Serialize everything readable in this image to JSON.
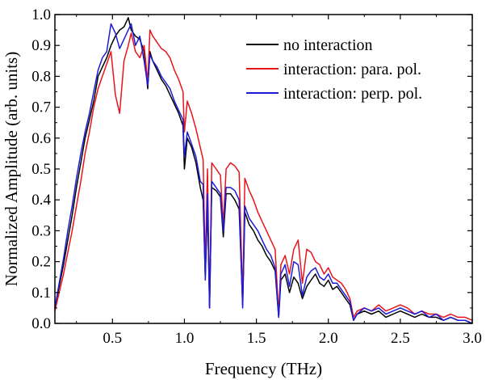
{
  "chart_data": {
    "type": "line",
    "title": "",
    "xlabel": "Frequency (THz)",
    "ylabel": "Normalized Amplitude (arb. units)",
    "xlim": [
      0.1,
      3.0
    ],
    "ylim": [
      0.0,
      1.0
    ],
    "xticks": [
      0.5,
      1.0,
      1.5,
      2.0,
      2.5,
      3.0
    ],
    "xtick_labels": [
      "0.5",
      "1.0",
      "1.5",
      "2.0",
      "2.5",
      "3.0"
    ],
    "yticks": [
      0.0,
      0.1,
      0.2,
      0.3,
      0.4,
      0.5,
      0.6,
      0.7,
      0.8,
      0.9,
      1.0
    ],
    "ytick_labels": [
      "0.0",
      "0.1",
      "0.2",
      "0.3",
      "0.4",
      "0.5",
      "0.6",
      "0.7",
      "0.8",
      "0.9",
      "1.0"
    ],
    "grid": false,
    "legend_position": "top-right",
    "series": [
      {
        "name": "no interaction",
        "color": "#000000",
        "x": [
          0.1,
          0.13,
          0.16,
          0.19,
          0.22,
          0.25,
          0.28,
          0.31,
          0.34,
          0.37,
          0.4,
          0.43,
          0.46,
          0.49,
          0.52,
          0.55,
          0.58,
          0.61,
          0.63,
          0.66,
          0.69,
          0.72,
          0.745,
          0.76,
          0.78,
          0.81,
          0.84,
          0.87,
          0.9,
          0.93,
          0.96,
          0.99,
          1.0,
          1.02,
          1.05,
          1.08,
          1.11,
          1.13,
          1.145,
          1.16,
          1.175,
          1.19,
          1.22,
          1.25,
          1.27,
          1.29,
          1.32,
          1.35,
          1.38,
          1.405,
          1.42,
          1.45,
          1.48,
          1.51,
          1.54,
          1.57,
          1.6,
          1.63,
          1.655,
          1.67,
          1.7,
          1.73,
          1.76,
          1.79,
          1.82,
          1.85,
          1.88,
          1.91,
          1.94,
          1.97,
          2.0,
          2.03,
          2.06,
          2.09,
          2.12,
          2.15,
          2.175,
          2.2,
          2.25,
          2.3,
          2.35,
          2.4,
          2.45,
          2.5,
          2.55,
          2.6,
          2.65,
          2.7,
          2.75,
          2.8,
          2.85,
          2.9,
          2.95,
          3.0
        ],
        "y": [
          0.05,
          0.12,
          0.19,
          0.27,
          0.35,
          0.44,
          0.52,
          0.6,
          0.66,
          0.72,
          0.8,
          0.83,
          0.86,
          0.9,
          0.93,
          0.95,
          0.96,
          0.99,
          0.95,
          0.93,
          0.92,
          0.88,
          0.76,
          0.88,
          0.85,
          0.82,
          0.79,
          0.77,
          0.74,
          0.71,
          0.68,
          0.64,
          0.5,
          0.6,
          0.57,
          0.52,
          0.44,
          0.4,
          0.15,
          0.38,
          0.05,
          0.44,
          0.43,
          0.41,
          0.28,
          0.42,
          0.42,
          0.4,
          0.37,
          0.06,
          0.36,
          0.32,
          0.3,
          0.27,
          0.25,
          0.22,
          0.2,
          0.17,
          0.02,
          0.14,
          0.16,
          0.1,
          0.15,
          0.13,
          0.08,
          0.12,
          0.14,
          0.16,
          0.13,
          0.12,
          0.14,
          0.11,
          0.12,
          0.1,
          0.08,
          0.06,
          0.01,
          0.03,
          0.04,
          0.03,
          0.04,
          0.02,
          0.03,
          0.04,
          0.03,
          0.02,
          0.03,
          0.02,
          0.02,
          0.01,
          0.02,
          0.01,
          0.01,
          0.0
        ]
      },
      {
        "name": "interaction: para. pol.",
        "color": "#e8141c",
        "x": [
          0.1,
          0.13,
          0.16,
          0.19,
          0.22,
          0.25,
          0.28,
          0.31,
          0.34,
          0.37,
          0.4,
          0.43,
          0.46,
          0.49,
          0.52,
          0.55,
          0.58,
          0.61,
          0.63,
          0.66,
          0.69,
          0.72,
          0.745,
          0.76,
          0.78,
          0.81,
          0.84,
          0.87,
          0.9,
          0.93,
          0.96,
          0.99,
          1.0,
          1.02,
          1.05,
          1.08,
          1.11,
          1.13,
          1.145,
          1.16,
          1.175,
          1.19,
          1.22,
          1.25,
          1.27,
          1.29,
          1.32,
          1.35,
          1.38,
          1.405,
          1.42,
          1.45,
          1.48,
          1.51,
          1.54,
          1.57,
          1.6,
          1.63,
          1.655,
          1.67,
          1.7,
          1.73,
          1.76,
          1.79,
          1.82,
          1.85,
          1.88,
          1.91,
          1.94,
          1.97,
          2.0,
          2.03,
          2.06,
          2.09,
          2.12,
          2.15,
          2.175,
          2.2,
          2.25,
          2.3,
          2.35,
          2.4,
          2.45,
          2.5,
          2.55,
          2.6,
          2.65,
          2.7,
          2.75,
          2.8,
          2.85,
          2.9,
          2.95,
          3.0
        ],
        "y": [
          0.04,
          0.1,
          0.16,
          0.23,
          0.3,
          0.38,
          0.46,
          0.55,
          0.62,
          0.7,
          0.76,
          0.8,
          0.84,
          0.88,
          0.74,
          0.68,
          0.85,
          0.9,
          0.94,
          0.88,
          0.86,
          0.9,
          0.78,
          0.95,
          0.93,
          0.91,
          0.89,
          0.88,
          0.86,
          0.82,
          0.79,
          0.75,
          0.62,
          0.72,
          0.68,
          0.63,
          0.57,
          0.53,
          0.18,
          0.5,
          0.06,
          0.52,
          0.5,
          0.48,
          0.32,
          0.5,
          0.52,
          0.51,
          0.49,
          0.08,
          0.47,
          0.43,
          0.4,
          0.36,
          0.33,
          0.3,
          0.27,
          0.24,
          0.03,
          0.19,
          0.22,
          0.16,
          0.24,
          0.27,
          0.13,
          0.24,
          0.23,
          0.2,
          0.19,
          0.16,
          0.18,
          0.15,
          0.14,
          0.13,
          0.11,
          0.08,
          0.02,
          0.04,
          0.05,
          0.04,
          0.06,
          0.04,
          0.05,
          0.06,
          0.05,
          0.03,
          0.04,
          0.03,
          0.03,
          0.02,
          0.03,
          0.02,
          0.02,
          0.01
        ]
      },
      {
        "name": "interaction: perp. pol.",
        "color": "#1c1cd8",
        "x": [
          0.1,
          0.13,
          0.16,
          0.19,
          0.22,
          0.25,
          0.28,
          0.31,
          0.34,
          0.37,
          0.4,
          0.43,
          0.46,
          0.49,
          0.52,
          0.55,
          0.58,
          0.61,
          0.63,
          0.66,
          0.69,
          0.72,
          0.745,
          0.76,
          0.78,
          0.81,
          0.84,
          0.87,
          0.9,
          0.93,
          0.96,
          0.99,
          1.0,
          1.02,
          1.05,
          1.08,
          1.11,
          1.13,
          1.145,
          1.16,
          1.175,
          1.19,
          1.22,
          1.25,
          1.27,
          1.29,
          1.32,
          1.35,
          1.38,
          1.405,
          1.42,
          1.45,
          1.48,
          1.51,
          1.54,
          1.57,
          1.6,
          1.63,
          1.655,
          1.67,
          1.7,
          1.73,
          1.76,
          1.79,
          1.82,
          1.85,
          1.88,
          1.91,
          1.94,
          1.97,
          2.0,
          2.03,
          2.06,
          2.09,
          2.12,
          2.15,
          2.175,
          2.2,
          2.25,
          2.3,
          2.35,
          2.4,
          2.45,
          2.5,
          2.55,
          2.6,
          2.65,
          2.7,
          2.75,
          2.8,
          2.85,
          2.9,
          2.95,
          3.0
        ],
        "y": [
          0.05,
          0.13,
          0.21,
          0.3,
          0.38,
          0.47,
          0.55,
          0.62,
          0.68,
          0.75,
          0.82,
          0.86,
          0.88,
          0.97,
          0.94,
          0.89,
          0.92,
          0.95,
          0.97,
          0.9,
          0.93,
          0.85,
          0.77,
          0.87,
          0.85,
          0.83,
          0.8,
          0.78,
          0.76,
          0.72,
          0.69,
          0.66,
          0.54,
          0.62,
          0.58,
          0.54,
          0.46,
          0.45,
          0.14,
          0.42,
          0.05,
          0.46,
          0.44,
          0.42,
          0.3,
          0.44,
          0.44,
          0.43,
          0.4,
          0.05,
          0.38,
          0.34,
          0.32,
          0.3,
          0.27,
          0.24,
          0.22,
          0.18,
          0.02,
          0.16,
          0.19,
          0.12,
          0.2,
          0.19,
          0.09,
          0.15,
          0.17,
          0.18,
          0.15,
          0.14,
          0.16,
          0.13,
          0.13,
          0.11,
          0.09,
          0.07,
          0.01,
          0.03,
          0.05,
          0.04,
          0.05,
          0.03,
          0.04,
          0.05,
          0.04,
          0.03,
          0.04,
          0.02,
          0.03,
          0.01,
          0.02,
          0.01,
          0.01,
          0.0
        ]
      }
    ]
  }
}
